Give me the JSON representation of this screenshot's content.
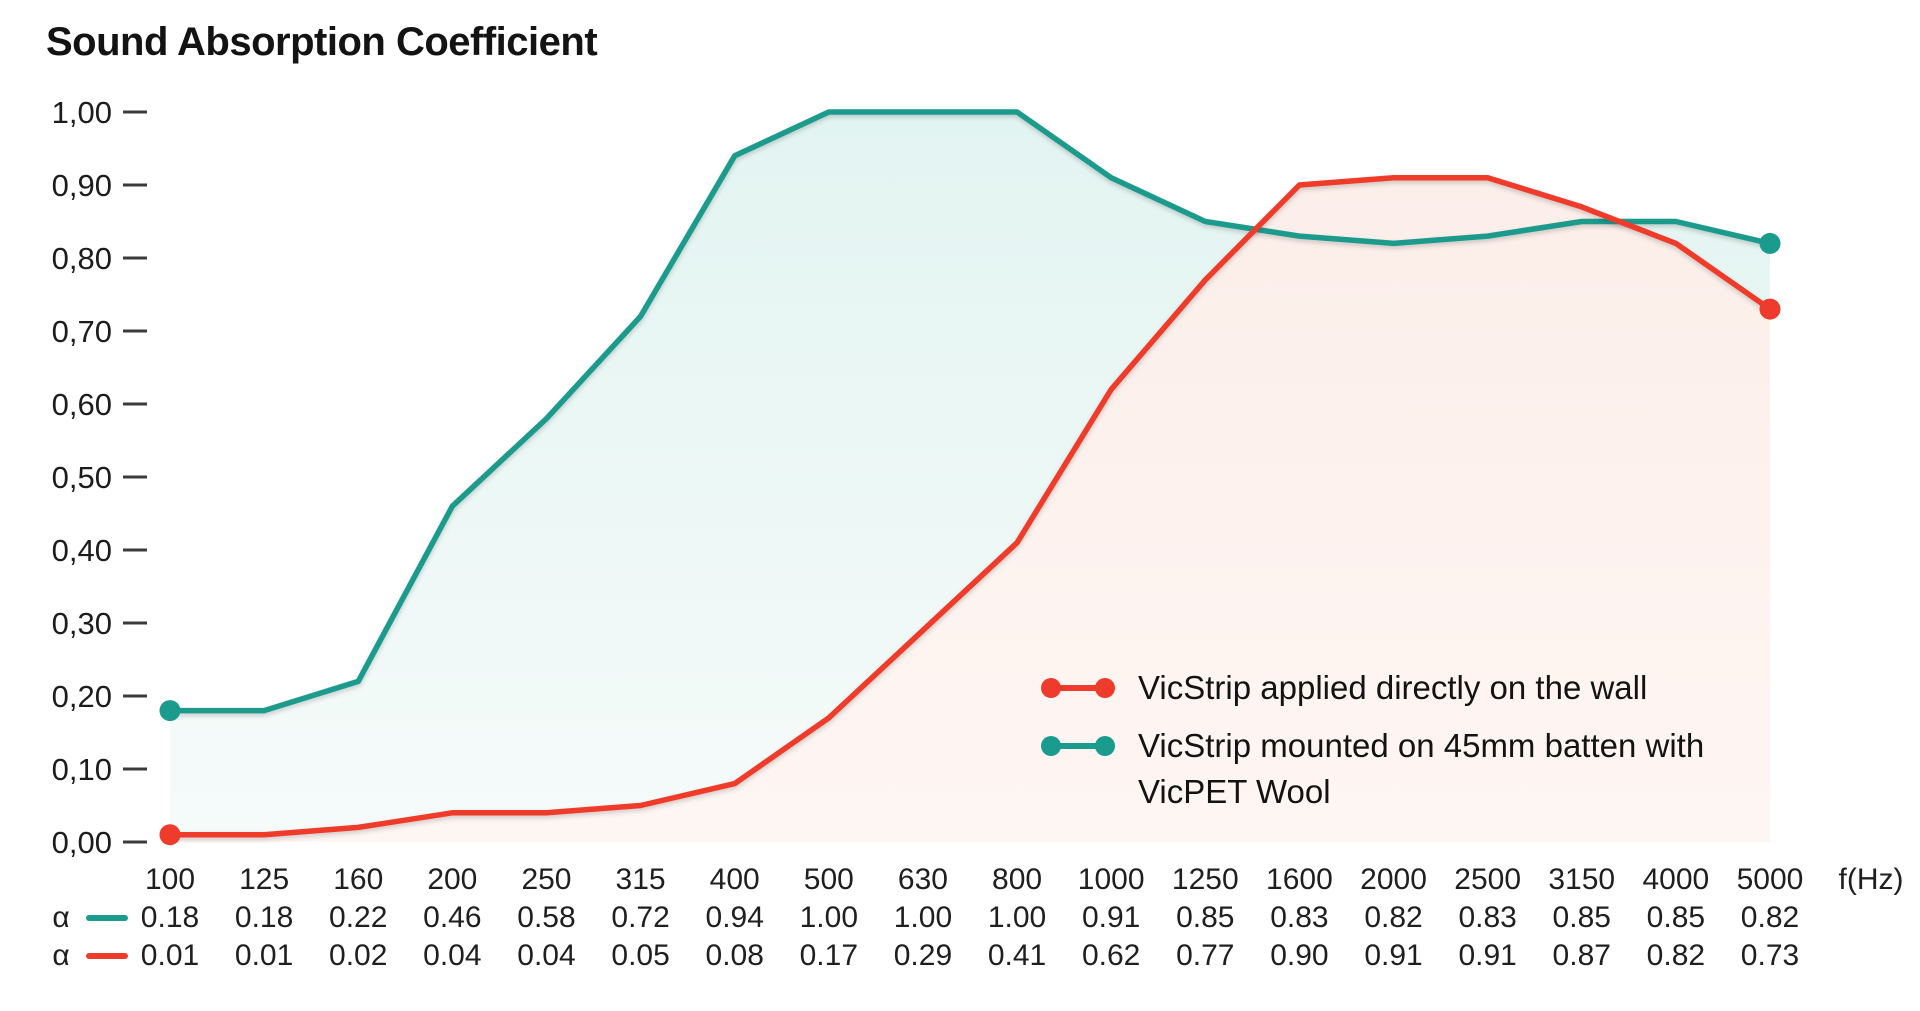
{
  "title": "Sound Absorption Coefficient",
  "x_axis_label": "f(Hz)",
  "chart_data": {
    "type": "line",
    "categories": [
      "100",
      "125",
      "160",
      "200",
      "250",
      "315",
      "400",
      "500",
      "630",
      "800",
      "1000",
      "1250",
      "1600",
      "2000",
      "2500",
      "3150",
      "4000",
      "5000"
    ],
    "series": [
      {
        "name": "VicStrip mounted on 45mm batten with VicPET Wool",
        "color": "#1A9B8D",
        "fill_top": "#E2F4F1",
        "fill_bottom": "#F6FBFA",
        "values": [
          0.18,
          0.18,
          0.22,
          0.46,
          0.58,
          0.72,
          0.94,
          1.0,
          1.0,
          1.0,
          0.91,
          0.85,
          0.83,
          0.82,
          0.83,
          0.85,
          0.85,
          0.82
        ]
      },
      {
        "name": "VicStrip applied directly on the wall",
        "color": "#EE3B2B",
        "fill_top": "#FCEEE9",
        "fill_bottom": "#FEF6F3",
        "values": [
          0.01,
          0.01,
          0.02,
          0.04,
          0.04,
          0.05,
          0.08,
          0.17,
          0.29,
          0.41,
          0.62,
          0.77,
          0.9,
          0.91,
          0.91,
          0.87,
          0.82,
          0.73
        ]
      }
    ],
    "y_ticks": [
      {
        "label": "1,00",
        "value": 1.0
      },
      {
        "label": "0,90",
        "value": 0.9
      },
      {
        "label": "0,80",
        "value": 0.8
      },
      {
        "label": "0,70",
        "value": 0.7
      },
      {
        "label": "0,60",
        "value": 0.6
      },
      {
        "label": "0,50",
        "value": 0.5
      },
      {
        "label": "0,40",
        "value": 0.4
      },
      {
        "label": "0,30",
        "value": 0.3
      },
      {
        "label": "0,20",
        "value": 0.2
      },
      {
        "label": "0,10",
        "value": 0.1
      },
      {
        "label": "0,00",
        "value": 0.0
      }
    ],
    "ylim": [
      0,
      1
    ],
    "grid": false,
    "markers": "endpoint-dots-only",
    "legend_position": "bottom-right"
  },
  "legend": {
    "items": [
      {
        "label": "VicStrip applied directly on the wall",
        "color": "#EE3B2B"
      },
      {
        "label": "VicStrip mounted on 45mm batten with VicPET Wool",
        "color": "#1A9B8D"
      }
    ]
  },
  "table": {
    "rows": [
      {
        "symbol": "α",
        "color": "#1A9B8D",
        "values": [
          "0.18",
          "0.18",
          "0.22",
          "0.46",
          "0.58",
          "0.72",
          "0.94",
          "1.00",
          "1.00",
          "1.00",
          "0.91",
          "0.85",
          "0.83",
          "0.82",
          "0.83",
          "0.85",
          "0.85",
          "0.82"
        ]
      },
      {
        "symbol": "α",
        "color": "#EE3B2B",
        "values": [
          "0.01",
          "0.01",
          "0.02",
          "0.04",
          "0.04",
          "0.05",
          "0.08",
          "0.17",
          "0.29",
          "0.41",
          "0.62",
          "0.77",
          "0.90",
          "0.91",
          "0.91",
          "0.87",
          "0.82",
          "0.73"
        ]
      }
    ]
  }
}
